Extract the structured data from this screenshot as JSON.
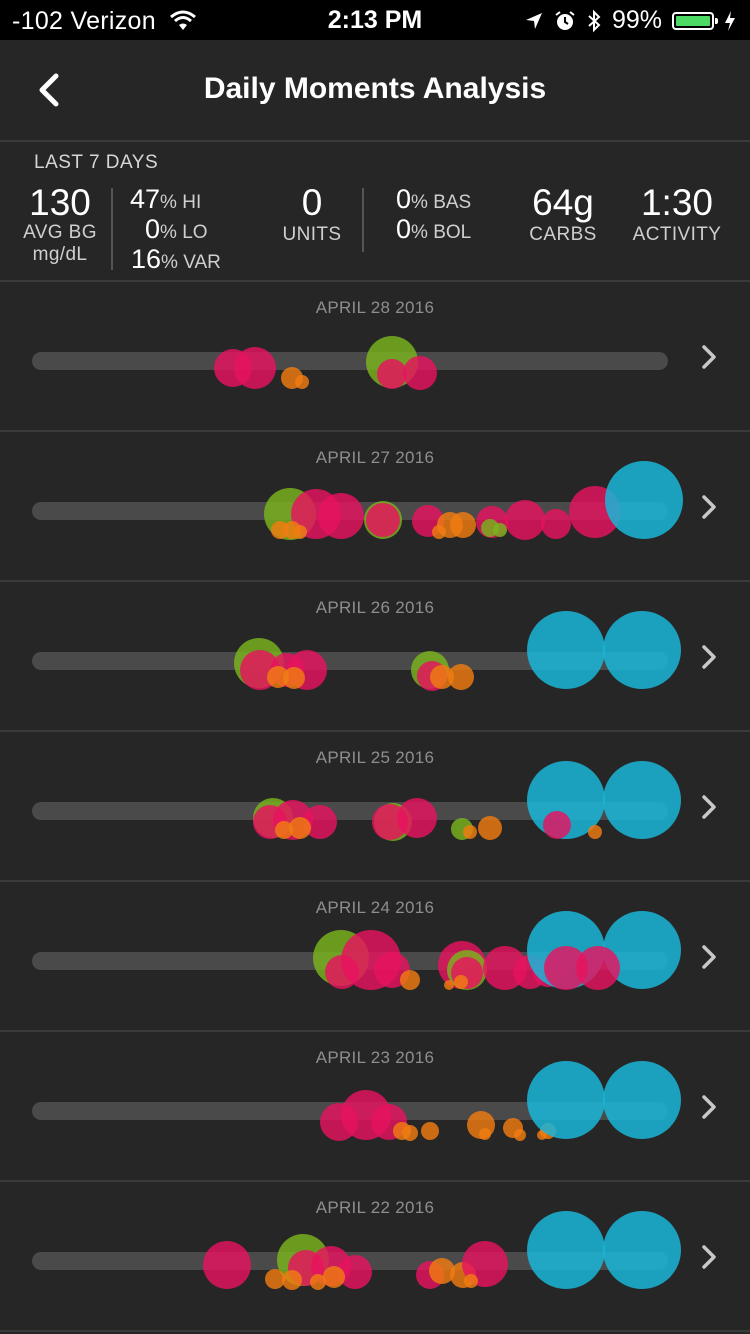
{
  "status": {
    "carrier": "-102 Verizon",
    "time": "2:13 PM",
    "battery_pct": "99%",
    "battery_level": 0.99
  },
  "nav": {
    "title": "Daily Moments Analysis"
  },
  "summary": {
    "range_label": "LAST 7 DAYS",
    "avg_bg_value": "130",
    "avg_bg_label": "AVG BG",
    "avg_bg_unit": "mg/dL",
    "hi_value": "47",
    "hi_label": "% HI",
    "lo_value": "0",
    "lo_label": "% LO",
    "var_value": "16",
    "var_label": "% VAR",
    "units_value": "0",
    "units_label": "UNITS",
    "bas_value": "0",
    "bas_label": "% BAS",
    "bol_value": "0",
    "bol_label": "% BOL",
    "carbs_value": "64g",
    "carbs_label": "CARBS",
    "activity_value": "1:30",
    "activity_label": "ACTIVITY"
  },
  "colors": {
    "bg_high": "#e8125f",
    "bg_in_range": "#7ab51d",
    "carbs": "#f07d12",
    "activity": "#1ab6d8",
    "track": "#4a4a4a"
  },
  "days": [
    {
      "date": "APRIL 28 2016"
    },
    {
      "date": "APRIL 27 2016"
    },
    {
      "date": "APRIL 26 2016"
    },
    {
      "date": "APRIL 25 2016"
    },
    {
      "date": "APRIL 24 2016"
    },
    {
      "date": "APRIL 23 2016"
    },
    {
      "date": "APRIL 22 2016"
    }
  ]
}
